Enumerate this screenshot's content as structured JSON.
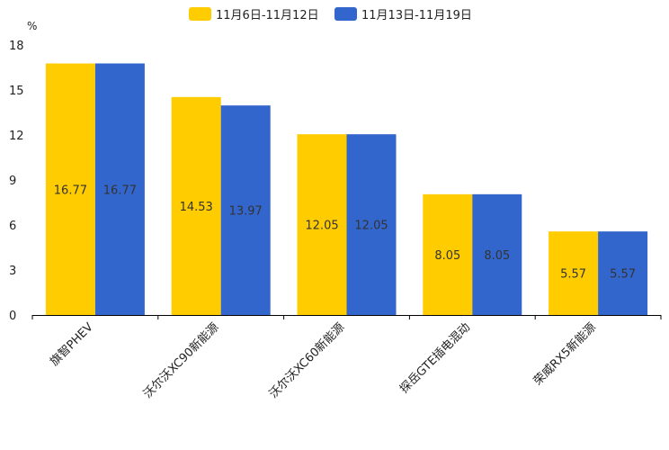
{
  "chart_data": {
    "type": "bar",
    "unit": "%",
    "categories": [
      "旗智PHEV",
      "沃尔沃XC90新能源",
      "沃尔沃XC60新能源",
      "探岳GTE插电混动",
      "荣威RX5新能源"
    ],
    "series": [
      {
        "name": "11月6日-11月12日",
        "color": "#FFCC00",
        "values": [
          16.77,
          14.53,
          12.05,
          8.05,
          5.57
        ]
      },
      {
        "name": "11月13日-11月19日",
        "color": "#3366CC",
        "values": [
          16.77,
          13.97,
          12.05,
          8.05,
          5.57
        ]
      }
    ],
    "y_ticks": [
      "0",
      "3",
      "6",
      "9",
      "12",
      "15",
      "18"
    ],
    "ylim": [
      0,
      18
    ],
    "legend_position": "top-center",
    "grid": false
  }
}
